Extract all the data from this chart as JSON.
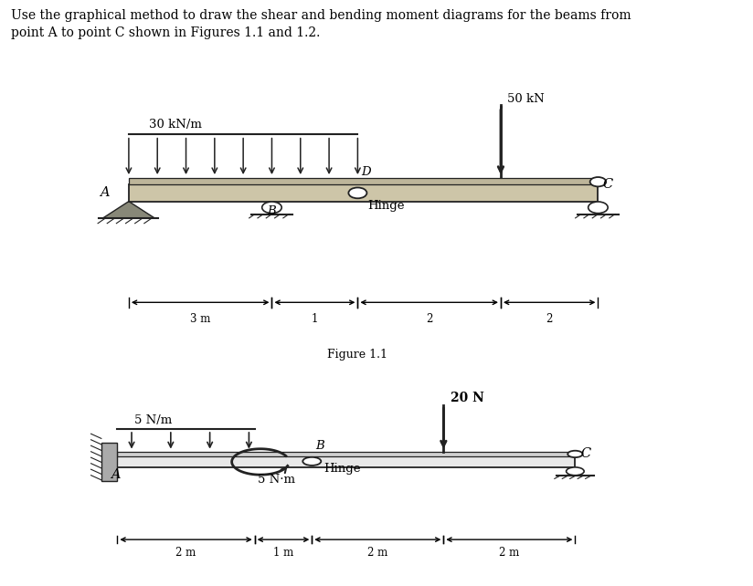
{
  "title_text1": "Use the graphical method to draw the shear and bending moment diagrams for the beams from",
  "title_text2": "point A to point C shown in Figures 1.1 and 1.2.",
  "fig11_caption": "Figure 1.1",
  "fig1_bg": "#9e9080",
  "fig2_bg": "#c8c8c8",
  "beam1_face": "#cdc5a8",
  "beam1_top": "#bdb59a",
  "beam2_face": "#e8e8e8",
  "dark": "#222222",
  "support_face": "#888878",
  "white": "#ffffff"
}
